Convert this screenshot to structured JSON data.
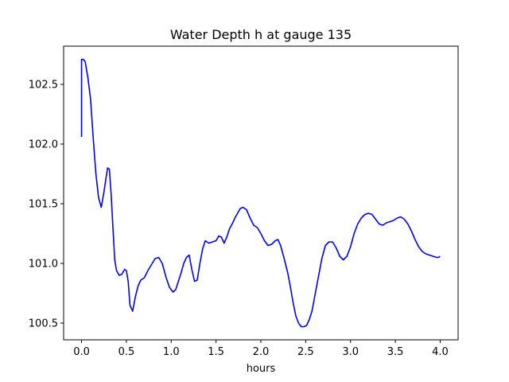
{
  "chart_data": {
    "type": "line",
    "title": "Water Depth h at gauge 135",
    "xlabel": "hours",
    "ylabel": "",
    "xlim": [
      -0.2,
      4.2
    ],
    "ylim": [
      100.36,
      102.82
    ],
    "xticks": [
      0.0,
      0.5,
      1.0,
      1.5,
      2.0,
      2.5,
      3.0,
      3.5,
      4.0
    ],
    "xtick_labels": [
      "0.0",
      "0.5",
      "1.0",
      "1.5",
      "2.0",
      "2.5",
      "3.0",
      "3.5",
      "4.0"
    ],
    "yticks": [
      100.5,
      101.0,
      101.5,
      102.0,
      102.5
    ],
    "ytick_labels": [
      "100.5",
      "101.0",
      "101.5",
      "102.0",
      "102.5"
    ],
    "grid": false,
    "legend": "none",
    "series": [
      {
        "color": "#0000ff",
        "points": [
          [
            0.0,
            102.06
          ],
          [
            0.0,
            102.71
          ],
          [
            0.02,
            102.71
          ],
          [
            0.04,
            102.69
          ],
          [
            0.07,
            102.56
          ],
          [
            0.1,
            102.38
          ],
          [
            0.13,
            102.05
          ],
          [
            0.16,
            101.75
          ],
          [
            0.19,
            101.55
          ],
          [
            0.22,
            101.47
          ],
          [
            0.25,
            101.6
          ],
          [
            0.27,
            101.7
          ],
          [
            0.29,
            101.8
          ],
          [
            0.31,
            101.79
          ],
          [
            0.33,
            101.58
          ],
          [
            0.35,
            101.3
          ],
          [
            0.37,
            101.03
          ],
          [
            0.39,
            100.94
          ],
          [
            0.42,
            100.9
          ],
          [
            0.45,
            100.91
          ],
          [
            0.48,
            100.95
          ],
          [
            0.5,
            100.94
          ],
          [
            0.52,
            100.85
          ],
          [
            0.54,
            100.65
          ],
          [
            0.57,
            100.6
          ],
          [
            0.6,
            100.72
          ],
          [
            0.63,
            100.81
          ],
          [
            0.66,
            100.86
          ],
          [
            0.7,
            100.88
          ],
          [
            0.74,
            100.94
          ],
          [
            0.78,
            100.99
          ],
          [
            0.82,
            101.04
          ],
          [
            0.86,
            101.05
          ],
          [
            0.9,
            101.0
          ],
          [
            0.94,
            100.89
          ],
          [
            0.98,
            100.8
          ],
          [
            1.02,
            100.76
          ],
          [
            1.05,
            100.78
          ],
          [
            1.08,
            100.85
          ],
          [
            1.11,
            100.92
          ],
          [
            1.14,
            101.0
          ],
          [
            1.17,
            101.05
          ],
          [
            1.2,
            101.07
          ],
          [
            1.23,
            100.95
          ],
          [
            1.26,
            100.85
          ],
          [
            1.29,
            100.86
          ],
          [
            1.32,
            101.0
          ],
          [
            1.35,
            101.12
          ],
          [
            1.38,
            101.19
          ],
          [
            1.42,
            101.17
          ],
          [
            1.46,
            101.18
          ],
          [
            1.5,
            101.19
          ],
          [
            1.53,
            101.23
          ],
          [
            1.56,
            101.22
          ],
          [
            1.59,
            101.17
          ],
          [
            1.62,
            101.22
          ],
          [
            1.65,
            101.29
          ],
          [
            1.68,
            101.33
          ],
          [
            1.71,
            101.38
          ],
          [
            1.74,
            101.42
          ],
          [
            1.77,
            101.46
          ],
          [
            1.8,
            101.47
          ],
          [
            1.84,
            101.45
          ],
          [
            1.88,
            101.38
          ],
          [
            1.92,
            101.32
          ],
          [
            1.96,
            101.3
          ],
          [
            2.0,
            101.25
          ],
          [
            2.04,
            101.19
          ],
          [
            2.08,
            101.15
          ],
          [
            2.12,
            101.16
          ],
          [
            2.16,
            101.19
          ],
          [
            2.19,
            101.2
          ],
          [
            2.22,
            101.15
          ],
          [
            2.26,
            101.04
          ],
          [
            2.3,
            100.92
          ],
          [
            2.33,
            100.8
          ],
          [
            2.36,
            100.67
          ],
          [
            2.39,
            100.56
          ],
          [
            2.42,
            100.5
          ],
          [
            2.45,
            100.47
          ],
          [
            2.48,
            100.47
          ],
          [
            2.51,
            100.48
          ],
          [
            2.54,
            100.53
          ],
          [
            2.57,
            100.6
          ],
          [
            2.6,
            100.72
          ],
          [
            2.64,
            100.88
          ],
          [
            2.68,
            101.04
          ],
          [
            2.72,
            101.15
          ],
          [
            2.76,
            101.18
          ],
          [
            2.8,
            101.18
          ],
          [
            2.84,
            101.13
          ],
          [
            2.88,
            101.06
          ],
          [
            2.92,
            101.03
          ],
          [
            2.96,
            101.06
          ],
          [
            3.0,
            101.14
          ],
          [
            3.04,
            101.25
          ],
          [
            3.08,
            101.33
          ],
          [
            3.12,
            101.38
          ],
          [
            3.16,
            101.41
          ],
          [
            3.2,
            101.42
          ],
          [
            3.24,
            101.41
          ],
          [
            3.28,
            101.37
          ],
          [
            3.32,
            101.33
          ],
          [
            3.36,
            101.32
          ],
          [
            3.4,
            101.34
          ],
          [
            3.44,
            101.35
          ],
          [
            3.48,
            101.36
          ],
          [
            3.52,
            101.38
          ],
          [
            3.56,
            101.39
          ],
          [
            3.6,
            101.37
          ],
          [
            3.64,
            101.33
          ],
          [
            3.68,
            101.27
          ],
          [
            3.72,
            101.2
          ],
          [
            3.76,
            101.14
          ],
          [
            3.8,
            101.1
          ],
          [
            3.84,
            101.08
          ],
          [
            3.88,
            101.07
          ],
          [
            3.92,
            101.06
          ],
          [
            3.96,
            101.05
          ],
          [
            3.98,
            101.05
          ],
          [
            4.0,
            101.06
          ]
        ]
      }
    ]
  }
}
